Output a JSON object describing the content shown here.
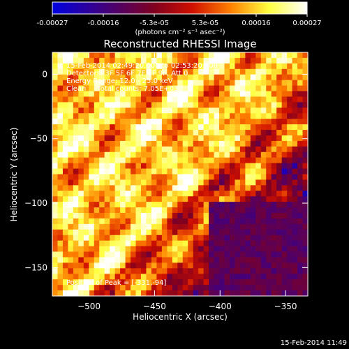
{
  "chart_data": {
    "type": "heatmap",
    "title": "Reconstructed RHESSI Image",
    "xlabel": "Heliocentric X (arcsec)",
    "ylabel": "Heliocentric Y (arcsec)",
    "xlim": [
      -528,
      -333
    ],
    "ylim": [
      -172,
      17
    ],
    "x_ticks": [
      -500,
      -450,
      -400,
      -350
    ],
    "y_ticks": [
      0,
      -50,
      -100,
      -150
    ],
    "colorbar": {
      "ticks": [
        "-0.00027",
        "-0.00016",
        "-5.3e-05",
        "5.3e-05",
        "0.00016",
        "0.00027"
      ],
      "range": [
        -0.00027,
        0.00027
      ],
      "units": "(photons cm⁻² s⁻¹ asec⁻²)",
      "colors": [
        "#0000e0",
        "#400080",
        "#800020",
        "#d01000",
        "#ff8000",
        "#ffff40",
        "#ffffff"
      ]
    },
    "annotations": [
      "15-Feb-2014 02:49:20.000 to 02:53:20.000",
      "Detectors: 3F 5F 6F 7F 8F 9F, Att 0",
      "Energy Range: 12.0 - 25.0 keV",
      "Clean     Total counts: 7.05E+03"
    ],
    "peak_label": "Position of Peak = [-331,-94]",
    "peak": {
      "x": -331,
      "y": -94
    },
    "emission_region": "bright emission across the upper-left and center, fainter (purple/blue) toward the lower-right"
  },
  "footer_timestamp": "15-Feb-2014 11:49"
}
